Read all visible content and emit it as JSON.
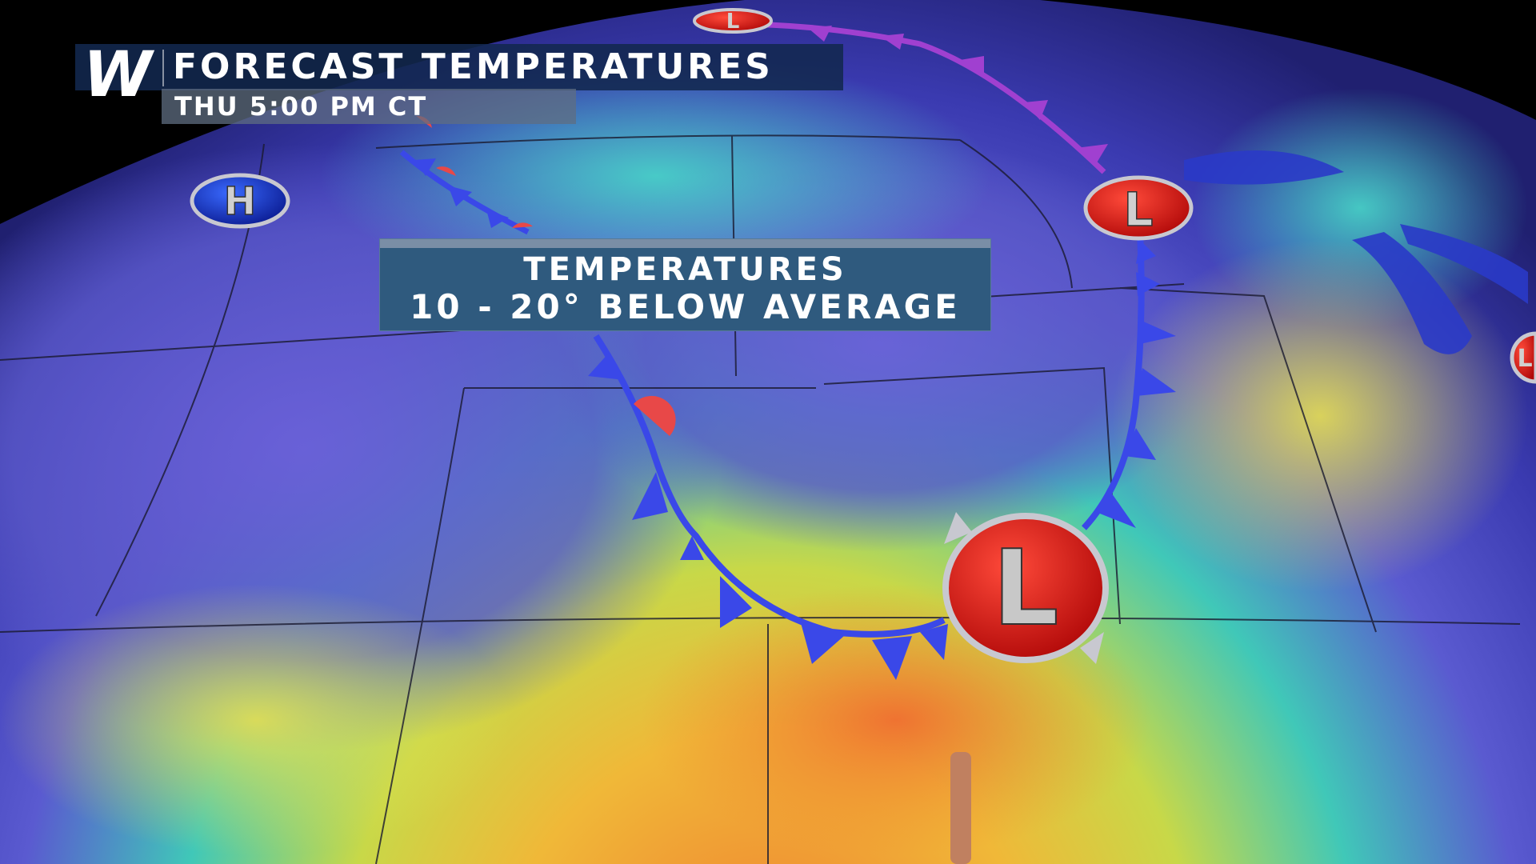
{
  "header": {
    "logo": "W",
    "title": "FORECAST TEMPERATURES",
    "subtitle": "THU 5:00 PM CT"
  },
  "callout": {
    "line1": "TEMPERATURES",
    "line2": "10 - 20° BELOW AVERAGE"
  },
  "pressure_centers": [
    {
      "label": "H",
      "type": "high",
      "color": "#1e3fc8"
    },
    {
      "label": "L",
      "type": "low",
      "color": "#e01010"
    },
    {
      "label": "L",
      "type": "low",
      "color": "#e01010"
    },
    {
      "label": "L",
      "type": "low",
      "color": "#e01010"
    },
    {
      "label": "L",
      "type": "low",
      "color": "#e01010"
    }
  ],
  "colors": {
    "cold_front": "#3a48e8",
    "warm_front": "#e84848",
    "occluded_front": "#a040d0",
    "cold_air": "#5a55c8",
    "mild_air": "#40d0c0",
    "warm_air": "#f0a030"
  }
}
